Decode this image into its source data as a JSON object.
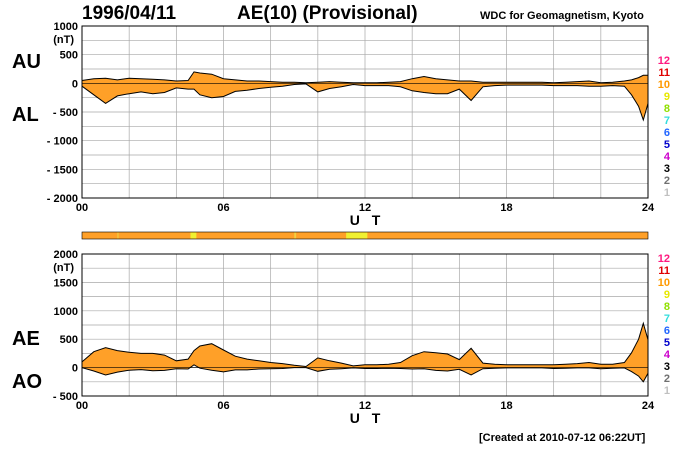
{
  "header": {
    "date": "1996/04/11",
    "title": "AE(10) (Provisional)",
    "source": "WDC for Geomagnetism, Kyoto"
  },
  "footer": {
    "created": "[Created at 2010-07-12 06:22UT]"
  },
  "colors": {
    "fill": "#ffa028",
    "grid": "#a8a8a8",
    "bar_base": "#ffa028",
    "bar_highlight": "#f0f030"
  },
  "legend": {
    "items": [
      {
        "label": "12",
        "color": "#ff1a80"
      },
      {
        "label": "11",
        "color": "#e00000"
      },
      {
        "label": "10",
        "color": "#ff9900"
      },
      {
        "label": "9",
        "color": "#e8e800"
      },
      {
        "label": "8",
        "color": "#90e000"
      },
      {
        "label": "7",
        "color": "#33dddd"
      },
      {
        "label": "6",
        "color": "#2266ff"
      },
      {
        "label": "5",
        "color": "#0000cc"
      },
      {
        "label": "4",
        "color": "#cc00cc"
      },
      {
        "label": "3",
        "color": "#000000"
      },
      {
        "label": "2",
        "color": "#707070"
      },
      {
        "label": "1",
        "color": "#c0c0c0"
      }
    ]
  },
  "chart_data": [
    {
      "type": "area",
      "upper_label": "AU",
      "lower_label": "AL",
      "ylabel": "(nT)",
      "xlabel": "U T",
      "ylim": [
        -2000,
        1000
      ],
      "yticks": [
        {
          "value": 1000,
          "label": "1000"
        },
        {
          "value": 500,
          "label": "500"
        },
        {
          "value": 0,
          "label": "0"
        },
        {
          "value": -500,
          "label": "- 500"
        },
        {
          "value": -1000,
          "label": "- 1000"
        },
        {
          "value": -1500,
          "label": "- 1500"
        },
        {
          "value": -2000,
          "label": "- 2000"
        }
      ],
      "xlim": [
        0,
        24
      ],
      "xticks": [
        "00",
        "06",
        "12",
        "18",
        "24"
      ],
      "grid": true,
      "x": [
        0,
        0.5,
        1,
        1.5,
        2,
        2.5,
        3,
        3.5,
        4,
        4.5,
        4.75,
        5,
        5.5,
        6,
        6.5,
        7,
        7.5,
        8,
        8.5,
        9,
        9.5,
        10,
        10.5,
        11,
        11.5,
        12,
        12.5,
        13,
        13.5,
        14,
        14.5,
        15,
        15.5,
        16,
        16.5,
        17,
        17.5,
        18,
        18.5,
        19,
        19.5,
        20,
        20.5,
        21,
        21.5,
        22,
        22.5,
        23,
        23.3,
        23.6,
        23.8,
        24
      ],
      "series": [
        {
          "name": "AU",
          "values": [
            50,
            80,
            90,
            60,
            90,
            80,
            70,
            60,
            40,
            50,
            200,
            180,
            160,
            80,
            60,
            40,
            40,
            30,
            20,
            20,
            10,
            20,
            30,
            20,
            10,
            10,
            10,
            20,
            30,
            80,
            120,
            80,
            60,
            40,
            40,
            20,
            20,
            20,
            20,
            20,
            20,
            10,
            20,
            30,
            40,
            10,
            20,
            40,
            60,
            100,
            140,
            140
          ]
        },
        {
          "name": "AL",
          "values": [
            -50,
            -200,
            -350,
            -220,
            -180,
            -150,
            -180,
            -160,
            -80,
            -100,
            -100,
            -200,
            -250,
            -230,
            -140,
            -120,
            -90,
            -70,
            -50,
            -20,
            -10,
            -150,
            -90,
            -60,
            -20,
            -40,
            -40,
            -40,
            -60,
            -130,
            -160,
            -180,
            -180,
            -100,
            -300,
            -60,
            -40,
            -30,
            -30,
            -30,
            -30,
            -40,
            -40,
            -40,
            -50,
            -50,
            -40,
            -50,
            -200,
            -400,
            -640,
            -350
          ]
        }
      ]
    },
    {
      "type": "area",
      "upper_label": "AE",
      "lower_label": "AO",
      "ylabel": "(nT)",
      "xlabel": "U T",
      "ylim": [
        -500,
        2000
      ],
      "yticks": [
        {
          "value": 2000,
          "label": "2000"
        },
        {
          "value": 1500,
          "label": "1500"
        },
        {
          "value": 1000,
          "label": "1000"
        },
        {
          "value": 500,
          "label": "500"
        },
        {
          "value": 0,
          "label": "0"
        },
        {
          "value": -500,
          "label": "- 500"
        }
      ],
      "xlim": [
        0,
        24
      ],
      "xticks": [
        "00",
        "06",
        "12",
        "18",
        "24"
      ],
      "grid": true,
      "x": [
        0,
        0.5,
        1,
        1.5,
        2,
        2.5,
        3,
        3.5,
        4,
        4.5,
        4.75,
        5,
        5.5,
        6,
        6.5,
        7,
        7.5,
        8,
        8.5,
        9,
        9.5,
        10,
        10.5,
        11,
        11.5,
        12,
        12.5,
        13,
        13.5,
        14,
        14.5,
        15,
        15.5,
        16,
        16.5,
        17,
        17.5,
        18,
        18.5,
        19,
        19.5,
        20,
        20.5,
        21,
        21.5,
        22,
        22.5,
        23,
        23.3,
        23.6,
        23.8,
        24
      ],
      "series": [
        {
          "name": "AE",
          "values": [
            100,
            280,
            350,
            300,
            270,
            250,
            250,
            220,
            120,
            150,
            300,
            380,
            420,
            310,
            200,
            150,
            120,
            90,
            70,
            40,
            20,
            170,
            120,
            80,
            30,
            50,
            50,
            60,
            90,
            210,
            280,
            260,
            240,
            140,
            340,
            80,
            60,
            50,
            50,
            50,
            50,
            50,
            60,
            70,
            90,
            60,
            60,
            90,
            260,
            500,
            780,
            490
          ]
        },
        {
          "name": "AO",
          "values": [
            0,
            -60,
            -130,
            -80,
            -45,
            -35,
            -55,
            -50,
            -20,
            -25,
            50,
            -10,
            -45,
            -75,
            -40,
            -40,
            -25,
            -20,
            -15,
            0,
            0,
            -65,
            -30,
            -20,
            -5,
            -15,
            -15,
            -10,
            -15,
            -25,
            -20,
            -50,
            -60,
            -30,
            -130,
            -20,
            -10,
            -5,
            -5,
            -5,
            -5,
            -15,
            -10,
            -5,
            -5,
            -20,
            -10,
            -5,
            -70,
            -150,
            -250,
            -100
          ]
        }
      ]
    }
  ],
  "quality_bar": {
    "base_color": "#ffa028",
    "highlights": [
      {
        "start": 1.5,
        "end": 1.55,
        "color": "#f0d040"
      },
      {
        "start": 4.6,
        "end": 4.85,
        "color": "#f0f030"
      },
      {
        "start": 9.0,
        "end": 9.08,
        "color": "#f0d040"
      },
      {
        "start": 11.2,
        "end": 12.1,
        "color": "#f0f030"
      }
    ]
  }
}
